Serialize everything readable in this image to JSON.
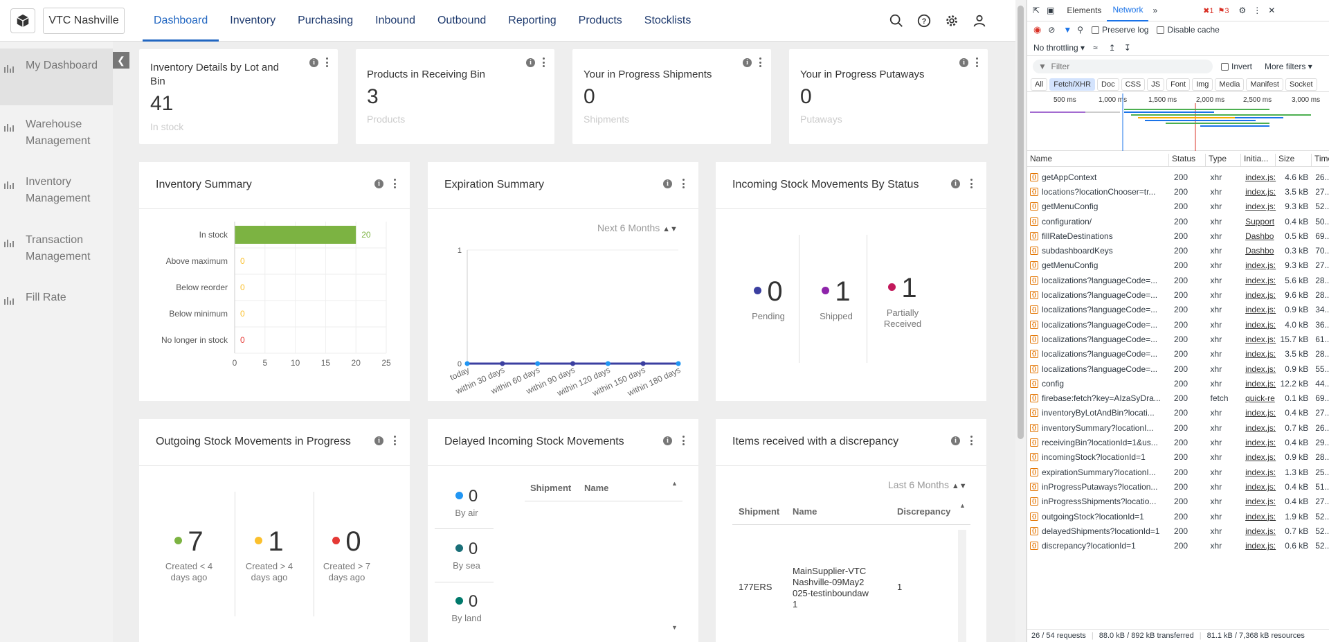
{
  "app": {
    "location": "VTC Nashville",
    "nav": [
      "Dashboard",
      "Inventory",
      "Purchasing",
      "Inbound",
      "Outbound",
      "Reporting",
      "Products",
      "Stocklists"
    ],
    "sidebar": [
      "My Dashboard",
      "Warehouse Management",
      "Inventory Management",
      "Transaction Management",
      "Fill Rate"
    ]
  },
  "cards": [
    {
      "title": "Inventory Details by Lot and Bin",
      "value": "41",
      "unit": "In stock"
    },
    {
      "title": "Products in Receiving Bin",
      "value": "3",
      "unit": "Products"
    },
    {
      "title": "Your in Progress Shipments",
      "value": "0",
      "unit": "Shipments"
    },
    {
      "title": "Your in Progress Putaways",
      "value": "0",
      "unit": "Putaways"
    }
  ],
  "panels": {
    "inventory_summary": {
      "title": "Inventory Summary"
    },
    "expiration_summary": {
      "title": "Expiration Summary",
      "select": "Next 6 Months"
    },
    "incoming": {
      "title": "Incoming Stock Movements By Status",
      "stats": [
        {
          "value": "0",
          "label": "Pending",
          "color": "#3b3fa0"
        },
        {
          "value": "1",
          "label": "Shipped",
          "color": "#8e24aa"
        },
        {
          "value": "1",
          "label": "Partially Received",
          "color": "#c2185b"
        }
      ]
    },
    "outgoing": {
      "title": "Outgoing Stock Movements in Progress",
      "stats": [
        {
          "value": "7",
          "label": "Created < 4 days ago",
          "color": "#7cb342"
        },
        {
          "value": "1",
          "label": "Created > 4 days ago",
          "color": "#fbc02d"
        },
        {
          "value": "0",
          "label": "Created > 7 days ago",
          "color": "#e53935"
        }
      ]
    },
    "delayed": {
      "title": "Delayed Incoming Stock Movements",
      "stats": [
        {
          "value": "0",
          "label": "By air",
          "color": "#2196f3"
        },
        {
          "value": "0",
          "label": "By sea",
          "color": "#1a6f78"
        },
        {
          "value": "0",
          "label": "By land",
          "color": "#00796b"
        }
      ],
      "columns": [
        "Shipment",
        "Name"
      ]
    },
    "discrepancy": {
      "title": "Items received with a discrepancy",
      "select": "Last 6 Months",
      "columns": [
        "Shipment",
        "Name",
        "Discrepancy"
      ],
      "rows": [
        {
          "shipment": "177ERS",
          "name": "MainSupplier-VTCNashville-09May2025-testinboundaw1",
          "discrepancy": "1"
        }
      ]
    }
  },
  "chart_data": [
    {
      "type": "bar",
      "orientation": "horizontal",
      "categories": [
        "In stock",
        "Above maximum",
        "Below reorder",
        "Below minimum",
        "No longer in stock"
      ],
      "values": [
        20,
        0,
        0,
        0,
        0
      ],
      "value_colors": [
        "#7cb342",
        "#fbc02d",
        "#fbc02d",
        "#fbc02d",
        "#e53935"
      ],
      "xlim": [
        0,
        25
      ],
      "xticks": [
        "0",
        "5",
        "10",
        "15",
        "20",
        "25"
      ]
    },
    {
      "type": "line",
      "categories": [
        "today",
        "within 30 days",
        "within 60 days",
        "within 90 days",
        "within 120 days",
        "within 150 days",
        "within 180 days"
      ],
      "values": [
        0,
        0,
        0,
        0,
        0,
        0,
        0
      ],
      "ylim": [
        0,
        1
      ],
      "yticks": [
        "0",
        "1"
      ]
    }
  ],
  "devtools": {
    "tabs": [
      "Elements",
      "Network"
    ],
    "errors": "1",
    "issues": "3",
    "toolbar": {
      "preserve_log": "Preserve log",
      "disable_cache": "Disable cache",
      "throttling": "No throttling"
    },
    "filter_placeholder": "Filter",
    "invert": "Invert",
    "more_filters": "More filters",
    "types": [
      "All",
      "Fetch/XHR",
      "Doc",
      "CSS",
      "JS",
      "Font",
      "Img",
      "Media",
      "Manifest",
      "Socket"
    ],
    "timeline": [
      "500 ms",
      "1,000 ms",
      "1,500 ms",
      "2,000 ms",
      "2,500 ms",
      "3,000 ms"
    ],
    "columns": [
      "Name",
      "Status",
      "Type",
      "Initia...",
      "Size",
      "Time"
    ],
    "rows": [
      {
        "name": "getAppContext",
        "status": "200",
        "type": "xhr",
        "init": "index.js:",
        "size": "4.6 kB",
        "time": "26..."
      },
      {
        "name": "locations?locationChooser=tr...",
        "status": "200",
        "type": "xhr",
        "init": "index.js:",
        "size": "3.5 kB",
        "time": "27..."
      },
      {
        "name": "getMenuConfig",
        "status": "200",
        "type": "xhr",
        "init": "index.js:",
        "size": "9.3 kB",
        "time": "52..."
      },
      {
        "name": "configuration/",
        "status": "200",
        "type": "xhr",
        "init": "Support",
        "size": "0.4 kB",
        "time": "50..."
      },
      {
        "name": "fillRateDestinations",
        "status": "200",
        "type": "xhr",
        "init": "Dashbo",
        "size": "0.5 kB",
        "time": "69..."
      },
      {
        "name": "subdashboardKeys",
        "status": "200",
        "type": "xhr",
        "init": "Dashbo",
        "size": "0.3 kB",
        "time": "70..."
      },
      {
        "name": "getMenuConfig",
        "status": "200",
        "type": "xhr",
        "init": "index.js:",
        "size": "9.3 kB",
        "time": "27..."
      },
      {
        "name": "localizations?languageCode=...",
        "status": "200",
        "type": "xhr",
        "init": "index.js:",
        "size": "5.6 kB",
        "time": "28..."
      },
      {
        "name": "localizations?languageCode=...",
        "status": "200",
        "type": "xhr",
        "init": "index.js:",
        "size": "9.6 kB",
        "time": "28..."
      },
      {
        "name": "localizations?languageCode=...",
        "status": "200",
        "type": "xhr",
        "init": "index.js:",
        "size": "0.9 kB",
        "time": "34..."
      },
      {
        "name": "localizations?languageCode=...",
        "status": "200",
        "type": "xhr",
        "init": "index.js:",
        "size": "4.0 kB",
        "time": "36..."
      },
      {
        "name": "localizations?languageCode=...",
        "status": "200",
        "type": "xhr",
        "init": "index.js:",
        "size": "15.7 kB",
        "time": "61..."
      },
      {
        "name": "localizations?languageCode=...",
        "status": "200",
        "type": "xhr",
        "init": "index.js:",
        "size": "3.5 kB",
        "time": "28..."
      },
      {
        "name": "localizations?languageCode=...",
        "status": "200",
        "type": "xhr",
        "init": "index.js:",
        "size": "0.9 kB",
        "time": "55..."
      },
      {
        "name": "config",
        "status": "200",
        "type": "xhr",
        "init": "index.js:",
        "size": "12.2 kB",
        "time": "44..."
      },
      {
        "name": "firebase:fetch?key=AIzaSyDra...",
        "status": "200",
        "type": "fetch",
        "init": "quick-re",
        "size": "0.1 kB",
        "time": "69..."
      },
      {
        "name": "inventoryByLotAndBin?locati...",
        "status": "200",
        "type": "xhr",
        "init": "index.js:",
        "size": "0.4 kB",
        "time": "27..."
      },
      {
        "name": "inventorySummary?locationI...",
        "status": "200",
        "type": "xhr",
        "init": "index.js:",
        "size": "0.7 kB",
        "time": "26..."
      },
      {
        "name": "receivingBin?locationId=1&us...",
        "status": "200",
        "type": "xhr",
        "init": "index.js:",
        "size": "0.4 kB",
        "time": "29..."
      },
      {
        "name": "incomingStock?locationId=1",
        "status": "200",
        "type": "xhr",
        "init": "index.js:",
        "size": "0.9 kB",
        "time": "28..."
      },
      {
        "name": "expirationSummary?locationI...",
        "status": "200",
        "type": "xhr",
        "init": "index.js:",
        "size": "1.3 kB",
        "time": "25..."
      },
      {
        "name": "inProgressPutaways?location...",
        "status": "200",
        "type": "xhr",
        "init": "index.js:",
        "size": "0.4 kB",
        "time": "51..."
      },
      {
        "name": "inProgressShipments?locatio...",
        "status": "200",
        "type": "xhr",
        "init": "index.js:",
        "size": "0.4 kB",
        "time": "27..."
      },
      {
        "name": "outgoingStock?locationId=1",
        "status": "200",
        "type": "xhr",
        "init": "index.js:",
        "size": "1.9 kB",
        "time": "52..."
      },
      {
        "name": "delayedShipments?locationId=1",
        "status": "200",
        "type": "xhr",
        "init": "index.js:",
        "size": "0.7 kB",
        "time": "52..."
      },
      {
        "name": "discrepancy?locationId=1",
        "status": "200",
        "type": "xhr",
        "init": "index.js:",
        "size": "0.6 kB",
        "time": "52..."
      }
    ],
    "footer": [
      "26 / 54 requests",
      "88.0 kB / 892 kB transferred",
      "81.1 kB / 7,368 kB resources"
    ]
  }
}
